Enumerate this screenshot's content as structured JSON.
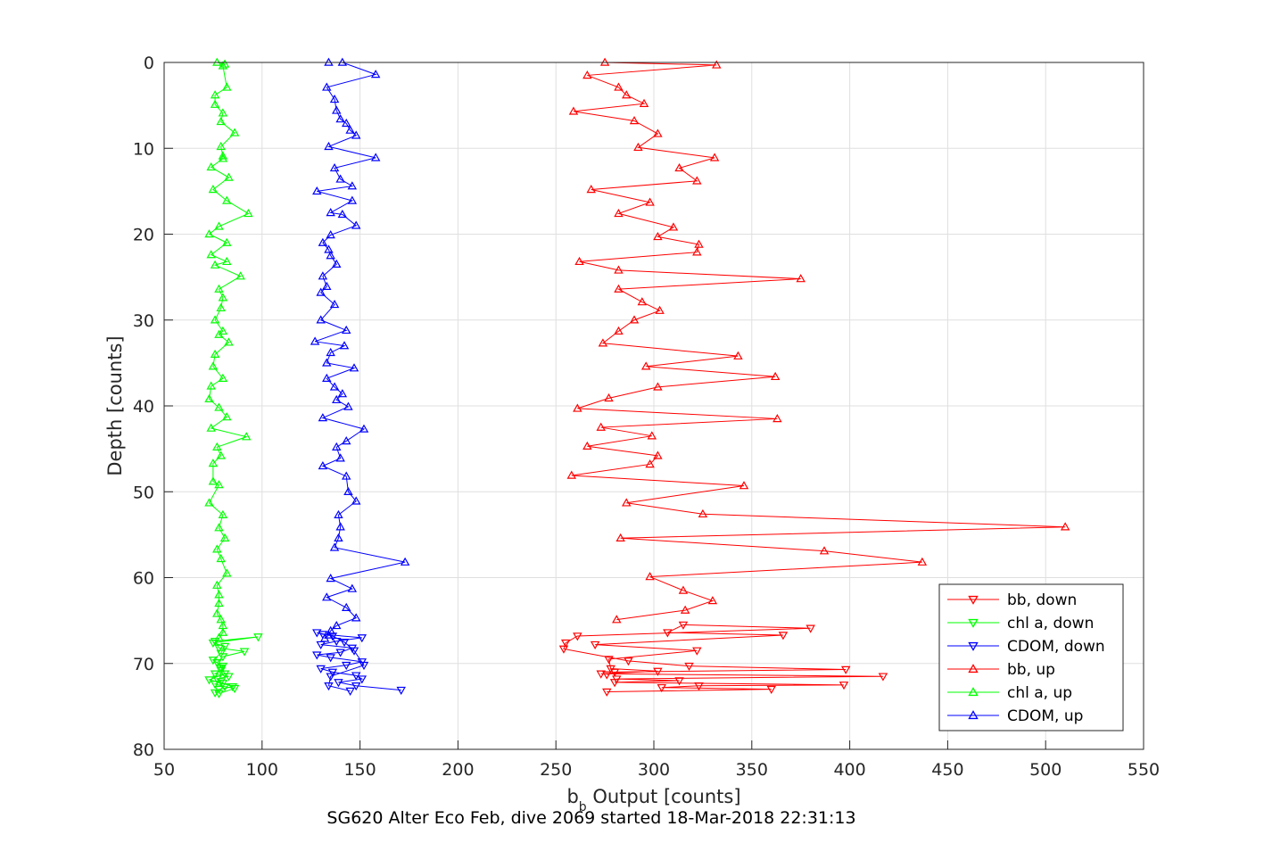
{
  "chart_data": {
    "type": "line",
    "title": "",
    "caption": "SG620 Alter Eco Feb, dive 2069 started 18-Mar-2018 22:31:13",
    "xlabel_main": "b",
    "xlabel_sub": "b",
    "xlabel_rest": " Output [counts]",
    "ylabel": "Depth [counts]",
    "xlim": [
      50,
      550
    ],
    "ylim": [
      0,
      80
    ],
    "y_reversed": true,
    "grid": true,
    "legend_position": "bottom-right",
    "xticks": [
      "50",
      "100",
      "150",
      "200",
      "250",
      "300",
      "350",
      "400",
      "450",
      "500",
      "550"
    ],
    "yticks": [
      "0",
      "10",
      "20",
      "30",
      "40",
      "50",
      "60",
      "70",
      "80"
    ],
    "colors": {
      "bb": "#ff0000",
      "chl": "#00ff00",
      "cdom": "#0000ff"
    },
    "series": [
      {
        "name": "bb, down",
        "color": "#ff0000",
        "marker": "triangle-down",
        "x": [
          276,
          360,
          304,
          323,
          397,
          280,
          313,
          281,
          417,
          273,
          302,
          278,
          277,
          322,
          270,
          366,
          307,
          315,
          380,
          261,
          255,
          254,
          287,
          318,
          398,
          280,
          276
        ],
        "y": [
          73.3,
          73.0,
          72.8,
          72.6,
          72.5,
          72.2,
          72.0,
          71.8,
          71.5,
          71.2,
          70.9,
          70.6,
          69.5,
          68.5,
          67.8,
          66.7,
          66.4,
          65.5,
          65.9,
          66.8,
          67.6,
          68.3,
          69.7,
          70.3,
          70.7,
          71.0,
          71.3
        ]
      },
      {
        "name": "chl a, down",
        "color": "#00ff00",
        "marker": "triangle-down",
        "x": [
          78,
          86,
          81,
          76,
          79,
          77,
          83,
          76,
          79,
          80,
          77,
          75,
          79,
          81,
          75,
          98,
          76,
          78,
          91,
          80,
          77,
          79,
          81,
          73,
          80,
          85,
          78,
          76
        ],
        "y": [
          73.5,
          72.9,
          72.7,
          72.4,
          72.1,
          71.8,
          71.5,
          71.2,
          70.8,
          70.3,
          69.9,
          69.6,
          68.8,
          68.0,
          67.6,
          66.9,
          67.4,
          68.2,
          68.6,
          69.2,
          69.9,
          70.5,
          71.2,
          71.9,
          72.3,
          72.7,
          73.0,
          73.4
        ]
      },
      {
        "name": "CDOM, down",
        "color": "#0000ff",
        "marker": "triangle-down",
        "x": [
          171,
          148,
          139,
          151,
          148,
          136,
          130,
          143,
          151,
          135,
          128,
          140,
          146,
          130,
          138,
          151,
          131,
          128,
          136,
          142,
          147,
          152,
          135,
          134,
          145
        ],
        "y": [
          73.1,
          72.6,
          72.2,
          71.8,
          71.4,
          71.0,
          70.6,
          70.2,
          69.8,
          69.3,
          69.0,
          68.7,
          68.2,
          67.8,
          67.4,
          67.0,
          66.6,
          66.4,
          66.8,
          67.5,
          68.5,
          70.2,
          71.5,
          72.6,
          73.2
        ]
      },
      {
        "name": "bb, up",
        "color": "#ff0000",
        "marker": "triangle-up",
        "x": [
          275,
          332,
          266,
          282,
          286,
          295,
          259,
          290,
          302,
          292,
          331,
          313,
          322,
          268,
          298,
          282,
          310,
          302,
          323,
          322,
          262,
          282,
          375,
          282,
          294,
          303,
          290,
          282,
          274,
          343,
          296,
          362,
          302,
          277,
          261,
          363,
          273,
          299,
          266,
          302,
          298,
          258,
          346,
          286,
          325,
          510,
          283,
          387,
          437,
          298,
          315,
          330,
          316,
          281
        ],
        "y": [
          0.0,
          0.3,
          1.5,
          2.9,
          3.8,
          4.8,
          5.7,
          6.8,
          8.3,
          9.9,
          11.1,
          12.3,
          13.8,
          14.8,
          16.3,
          17.6,
          19.2,
          20.3,
          21.2,
          22.1,
          23.2,
          24.2,
          25.2,
          26.4,
          27.9,
          28.9,
          30.0,
          31.3,
          32.7,
          34.2,
          35.4,
          36.6,
          37.8,
          39.1,
          40.3,
          41.5,
          42.5,
          43.5,
          44.7,
          45.8,
          46.8,
          48.1,
          49.3,
          51.3,
          52.6,
          54.1,
          55.4,
          56.9,
          58.2,
          59.9,
          61.5,
          62.7,
          63.8,
          64.9
        ]
      },
      {
        "name": "chl a, up",
        "color": "#00ff00",
        "marker": "triangle-up",
        "x": [
          77,
          81,
          80,
          82,
          76,
          76,
          80,
          79,
          86,
          79,
          80,
          80,
          74,
          83,
          75,
          82,
          93,
          78,
          73,
          82,
          74,
          82,
          76,
          89,
          78,
          80,
          79,
          76,
          80,
          78,
          83,
          76,
          75,
          80,
          74,
          73,
          78,
          82,
          74,
          92,
          77,
          79,
          75,
          75,
          78,
          73,
          80,
          78,
          81,
          77,
          79,
          82,
          77,
          78,
          78,
          77,
          79,
          80,
          80,
          78
        ],
        "y": [
          0.0,
          0.2,
          0.4,
          2.9,
          3.8,
          4.9,
          5.9,
          6.9,
          8.2,
          9.8,
          10.9,
          11.2,
          12.2,
          13.4,
          14.8,
          16.1,
          17.6,
          19.1,
          20.0,
          21.0,
          22.4,
          23.2,
          23.6,
          24.9,
          26.4,
          27.4,
          28.6,
          30.0,
          31.3,
          31.7,
          32.6,
          34.0,
          35.4,
          36.8,
          37.7,
          39.2,
          40.2,
          41.3,
          42.6,
          43.6,
          44.8,
          45.8,
          46.7,
          48.8,
          49.2,
          51.3,
          52.7,
          54.2,
          55.4,
          56.7,
          57.8,
          59.5,
          60.9,
          62.0,
          63.0,
          64.2,
          64.9,
          65.6,
          66.4,
          67.0
        ]
      },
      {
        "name": "CDOM, up",
        "color": "#0000ff",
        "marker": "triangle-up",
        "x": [
          134,
          141,
          158,
          133,
          137,
          138,
          140,
          143,
          145,
          148,
          134,
          158,
          137,
          140,
          146,
          128,
          146,
          135,
          141,
          148,
          135,
          131,
          134,
          135,
          138,
          131,
          133,
          130,
          137,
          130,
          143,
          127,
          142,
          135,
          133,
          147,
          133,
          137,
          141,
          138,
          144,
          131,
          152,
          143,
          138,
          140,
          131,
          143,
          144,
          148,
          139,
          140,
          139,
          137,
          173,
          135,
          146,
          133,
          143,
          148,
          138,
          135,
          134,
          132
        ],
        "y": [
          0.0,
          0.0,
          1.4,
          2.9,
          4.3,
          5.6,
          6.6,
          7.1,
          7.9,
          8.5,
          9.8,
          11.1,
          12.3,
          13.6,
          14.4,
          15.0,
          16.1,
          17.5,
          17.7,
          19.0,
          20.1,
          21.0,
          21.8,
          22.5,
          23.5,
          24.9,
          26.1,
          26.8,
          28.2,
          30.0,
          31.2,
          32.5,
          33.0,
          33.8,
          35.0,
          35.6,
          36.8,
          37.8,
          38.6,
          39.3,
          40.1,
          41.4,
          42.7,
          44.1,
          44.8,
          46.1,
          47.0,
          48.2,
          50.0,
          51.1,
          52.7,
          54.1,
          55.4,
          56.5,
          58.2,
          60.1,
          61.3,
          62.3,
          63.5,
          64.7,
          65.6,
          66.2,
          66.7,
          67.1
        ]
      }
    ]
  }
}
